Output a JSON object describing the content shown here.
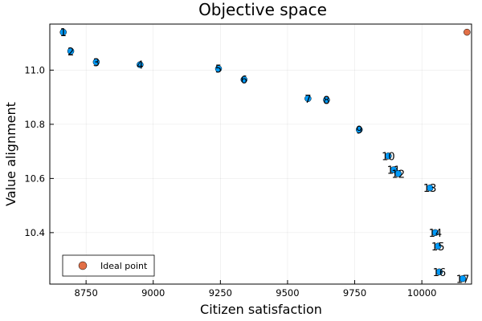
{
  "chart_data": {
    "type": "scatter",
    "title": "Objective space",
    "xlabel": "Citizen satisfaction",
    "ylabel": "Value alignment",
    "xlim": [
      8615,
      10185
    ],
    "ylim": [
      10.21,
      11.17
    ],
    "xticks": [
      8750,
      9000,
      9250,
      9500,
      9750,
      10000
    ],
    "xtick_labels": [
      "8750",
      "9000",
      "9250",
      "9500",
      "9750",
      "10000"
    ],
    "yticks": [
      10.4,
      10.6,
      10.8,
      11.0
    ],
    "ytick_labels": [
      "10.4",
      "10.6",
      "10.8",
      "11.0"
    ],
    "grid": true,
    "legend": {
      "position": "bottom-left",
      "entries": [
        {
          "name": "Ideal point",
          "color": "#e26f46"
        }
      ]
    },
    "point_color": "#009af9",
    "ideal_point": {
      "x": 10168,
      "y": 11.14
    },
    "points": [
      {
        "label": "1",
        "x": 8665,
        "y": 11.14
      },
      {
        "label": "2",
        "x": 8693,
        "y": 11.07
      },
      {
        "label": "3",
        "x": 8788,
        "y": 11.03
      },
      {
        "label": "4",
        "x": 8951,
        "y": 11.02
      },
      {
        "label": "5",
        "x": 9243,
        "y": 11.005
      },
      {
        "label": "6",
        "x": 9338,
        "y": 10.965
      },
      {
        "label": "7",
        "x": 9576,
        "y": 10.895
      },
      {
        "label": "8",
        "x": 9645,
        "y": 10.89
      },
      {
        "label": "9",
        "x": 9767,
        "y": 10.78
      },
      {
        "label": "10",
        "x": 9875,
        "y": 10.683
      },
      {
        "label": "11",
        "x": 9895,
        "y": 10.632
      },
      {
        "label": "12",
        "x": 9912,
        "y": 10.618
      },
      {
        "label": "13",
        "x": 10030,
        "y": 10.565
      },
      {
        "label": "14",
        "x": 10050,
        "y": 10.4
      },
      {
        "label": "15",
        "x": 10060,
        "y": 10.35
      },
      {
        "label": "16",
        "x": 10065,
        "y": 10.255
      },
      {
        "label": "17",
        "x": 10152,
        "y": 10.23
      }
    ]
  }
}
